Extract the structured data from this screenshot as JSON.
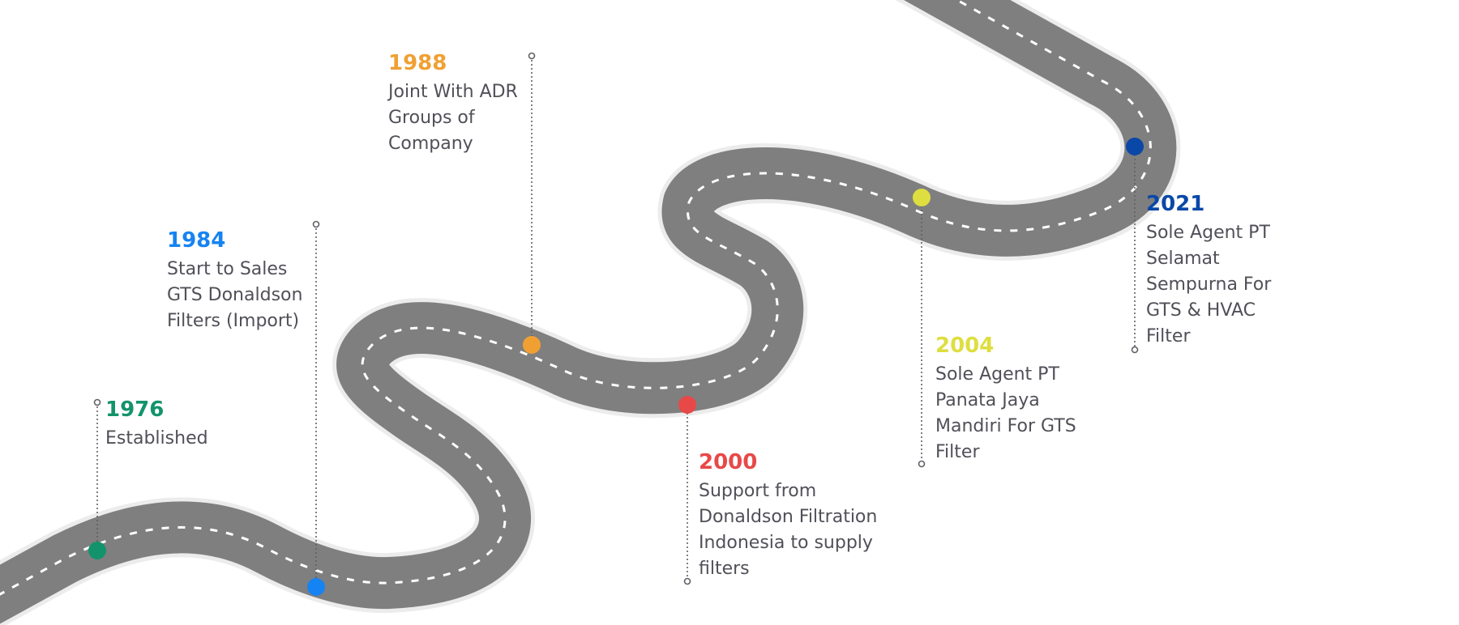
{
  "road": {
    "color": "#7f7f7f",
    "edge_color": "#ececec",
    "dash_color": "#ffffff"
  },
  "milestones": [
    {
      "id": "1976",
      "year": "1976",
      "color": "#13936b",
      "lines": [
        "Established"
      ]
    },
    {
      "id": "1984",
      "year": "1984",
      "color": "#1683f2",
      "lines": [
        "Start to Sales",
        "GTS Donaldson",
        "Filters (Import)"
      ]
    },
    {
      "id": "1988",
      "year": "1988",
      "color": "#f0a033",
      "lines": [
        "Joint With ADR",
        "Groups of",
        "Company"
      ]
    },
    {
      "id": "2000",
      "year": "2000",
      "color": "#e84848",
      "lines": [
        "Support from",
        "Donaldson Filtration",
        "Indonesia to supply",
        "filters"
      ]
    },
    {
      "id": "2004",
      "year": "2004",
      "color": "#dede40",
      "lines": [
        "Sole Agent PT",
        "Panata Jaya",
        "Mandiri For GTS",
        "Filter"
      ]
    },
    {
      "id": "2021",
      "year": "2021",
      "color": "#0a48a8",
      "lines": [
        "Sole Agent PT",
        "Selamat",
        "Sempurna For",
        "GTS & HVAC",
        "Filter"
      ]
    }
  ]
}
